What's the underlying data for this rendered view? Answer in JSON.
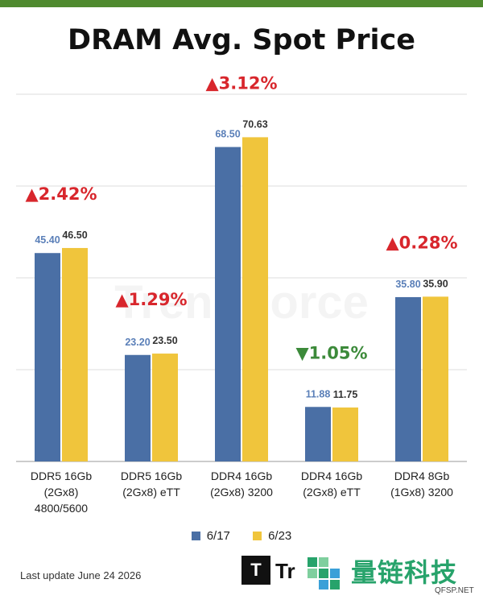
{
  "chart_data": {
    "type": "bar",
    "title": "DRAM Avg. Spot Price",
    "categories": [
      [
        "DDR5 16Gb",
        "(2Gx8)",
        "4800/5600"
      ],
      [
        "DDR5 16Gb",
        "(2Gx8) eTT"
      ],
      [
        "DDR4 16Gb",
        "(2Gx8) 3200"
      ],
      [
        "DDR4 16Gb",
        "(2Gx8) eTT"
      ],
      [
        "DDR4 8Gb",
        "(1Gx8) 3200"
      ]
    ],
    "series": [
      {
        "name": "6/17",
        "color": "#4a6fa5",
        "values": [
          45.4,
          23.2,
          68.5,
          11.88,
          35.8
        ],
        "labels": [
          "45.40",
          "23.20",
          "68.50",
          "11.88",
          "35.80"
        ]
      },
      {
        "name": "6/23",
        "color": "#f0c53c",
        "values": [
          46.5,
          23.5,
          70.63,
          11.75,
          35.9
        ],
        "labels": [
          "46.50",
          "23.50",
          "70.63",
          "11.75",
          "35.90"
        ]
      }
    ],
    "changes": [
      {
        "text": "2.42%",
        "direction": "up"
      },
      {
        "text": "1.29%",
        "direction": "up"
      },
      {
        "text": "3.12%",
        "direction": "up"
      },
      {
        "text": "1.05%",
        "direction": "down"
      },
      {
        "text": "0.28%",
        "direction": "up"
      }
    ],
    "ylim": [
      0,
      80
    ],
    "grid": true,
    "legend_position": "bottom",
    "up_color": "#d8262c",
    "down_color": "#3c8a3a",
    "watermark": "TrendForce"
  },
  "legend": {
    "s1": "6/17",
    "s2": "6/23"
  },
  "footer": {
    "last_update": "Last update  June 24  2026"
  },
  "brand": {
    "trendforce_mark": "T",
    "trendforce_text": "Tr",
    "cn_name": "量链科技",
    "site": "QFSP.NET"
  }
}
